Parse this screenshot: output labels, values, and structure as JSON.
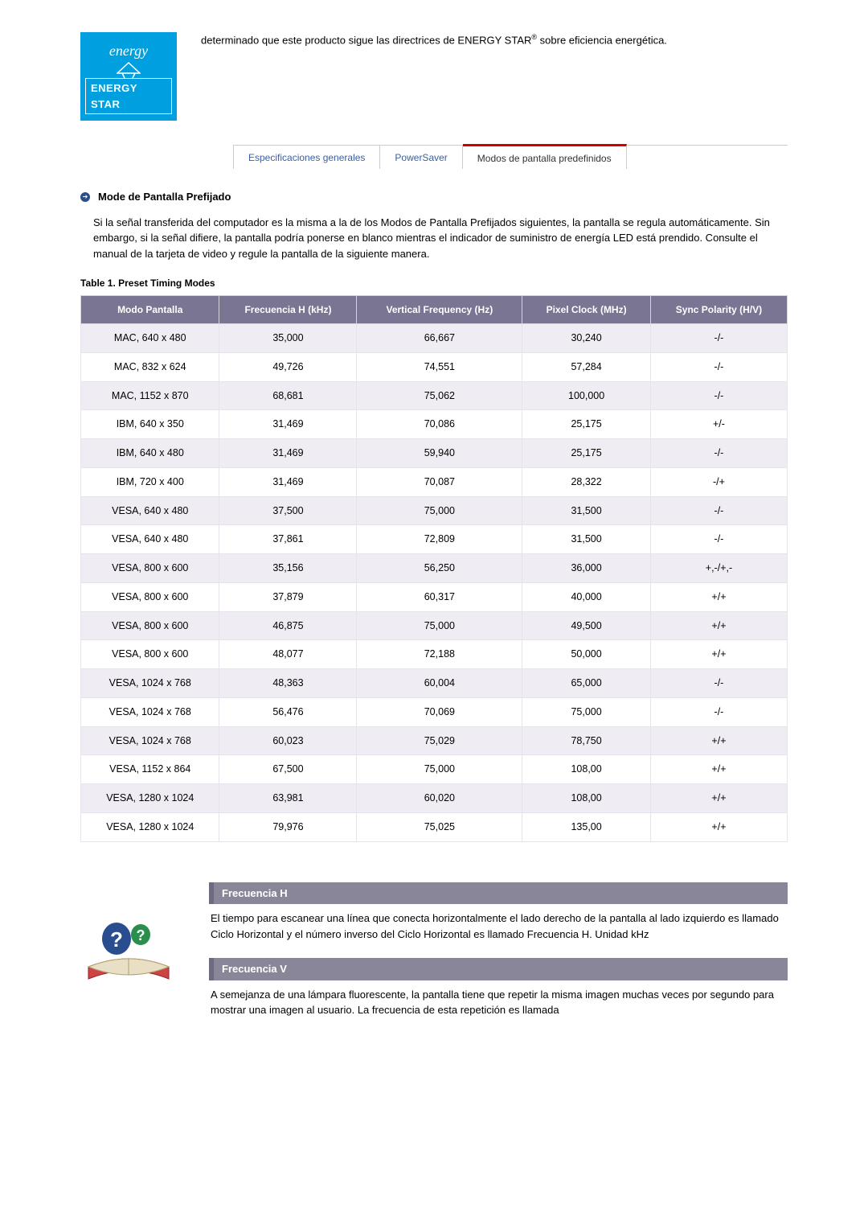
{
  "top": {
    "logo_cursive": "energy",
    "logo_label": "ENERGY STAR",
    "text_pre": "determinado que este producto sigue las directrices de ENERGY STAR",
    "text_post": " sobre eficiencia energética.",
    "sup": "®"
  },
  "tabs": {
    "items": [
      {
        "label": "Especificaciones generales",
        "active": false
      },
      {
        "label": "PowerSaver",
        "active": false
      },
      {
        "label": "Modos de pantalla predefinidos",
        "active": true
      }
    ]
  },
  "section": {
    "title": "Mode de Pantalla Prefijado",
    "intro": "Si la señal transferida del computador es la misma a la de los Modos de Pantalla Prefijados siguientes, la pantalla se regula automáticamente. Sin embargo, si la señal difiere, la pantalla podría ponerse en blanco mientras el indicador de suministro de energía LED está prendido. Consulte el manual de la tarjeta de video y regule la pantalla de la siguiente manera."
  },
  "table": {
    "title": "Table 1. Preset Timing Modes",
    "columns": [
      "Modo Pantalla",
      "Frecuencia H (kHz)",
      "Vertical Frequency (Hz)",
      "Pixel Clock (MHz)",
      "Sync Polarity (H/V)"
    ],
    "rows": [
      [
        "MAC, 640 x 480",
        "35,000",
        "66,667",
        "30,240",
        "-/-"
      ],
      [
        "MAC, 832 x 624",
        "49,726",
        "74,551",
        "57,284",
        "-/-"
      ],
      [
        "MAC, 1152 x 870",
        "68,681",
        "75,062",
        "100,000",
        "-/-"
      ],
      [
        "IBM, 640 x 350",
        "31,469",
        "70,086",
        "25,175",
        "+/-"
      ],
      [
        "IBM, 640 x 480",
        "31,469",
        "59,940",
        "25,175",
        "-/-"
      ],
      [
        "IBM, 720 x 400",
        "31,469",
        "70,087",
        "28,322",
        "-/+"
      ],
      [
        "VESA, 640 x 480",
        "37,500",
        "75,000",
        "31,500",
        "-/-"
      ],
      [
        "VESA, 640 x 480",
        "37,861",
        "72,809",
        "31,500",
        "-/-"
      ],
      [
        "VESA, 800 x 600",
        "35,156",
        "56,250",
        "36,000",
        "+,-/+,-"
      ],
      [
        "VESA, 800 x 600",
        "37,879",
        "60,317",
        "40,000",
        "+/+"
      ],
      [
        "VESA, 800 x 600",
        "46,875",
        "75,000",
        "49,500",
        "+/+"
      ],
      [
        "VESA, 800 x 600",
        "48,077",
        "72,188",
        "50,000",
        "+/+"
      ],
      [
        "VESA, 1024 x 768",
        "48,363",
        "60,004",
        "65,000",
        "-/-"
      ],
      [
        "VESA, 1024 x 768",
        "56,476",
        "70,069",
        "75,000",
        "-/-"
      ],
      [
        "VESA, 1024 x 768",
        "60,023",
        "75,029",
        "78,750",
        "+/+"
      ],
      [
        "VESA, 1152 x 864",
        "67,500",
        "75,000",
        "108,00",
        "+/+"
      ],
      [
        "VESA, 1280 x 1024",
        "63,981",
        "60,020",
        "108,00",
        "+/+"
      ],
      [
        "VESA, 1280 x 1024",
        "79,976",
        "75,025",
        "135,00",
        "+/+"
      ]
    ],
    "header_bg": "#7a7592",
    "alt_bg": "#efedf3"
  },
  "defs": {
    "items": [
      {
        "title": "Frecuencia H",
        "text": "El tiempo para escanear una línea que conecta horizontalmente el lado derecho de la pantalla al lado izquierdo es llamado Ciclo Horizontal y el número inverso del Ciclo Horizontal es llamado Frecuencia H. Unidad kHz"
      },
      {
        "title": "Frecuencia V",
        "text": "A semejanza de una lámpara fluorescente, la pantalla tiene que repetir la misma imagen muchas veces por segundo para mostrar una imagen al usuario. La frecuencia de esta repetición es llamada"
      }
    ]
  }
}
